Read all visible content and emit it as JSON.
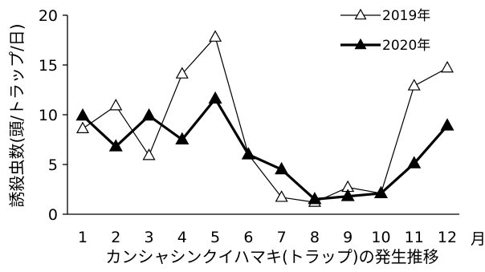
{
  "chart_data": {
    "type": "line",
    "title": "",
    "xlabel": "カンシャシンクイハマキ(トラップ)の発生推移",
    "xunit": "月",
    "ylabel": "誘殺虫数(頭/トラップ/日)",
    "ylim": [
      0,
      20
    ],
    "yticks": [
      "0",
      "5",
      "10",
      "15",
      "20"
    ],
    "grid": false,
    "legend": "top-right",
    "categories": [
      "1",
      "2",
      "3",
      "4",
      "5",
      "6",
      "7",
      "8",
      "9",
      "10",
      "11",
      "12"
    ],
    "series": [
      {
        "name": "2019年",
        "marker": "open-triangle",
        "color": "#000000",
        "line": "thin",
        "values": [
          8.6,
          10.9,
          5.9,
          14.1,
          17.8,
          6.0,
          1.7,
          1.2,
          2.7,
          2.1,
          12.9,
          14.7
        ]
      },
      {
        "name": "2020年",
        "marker": "filled-triangle",
        "color": "#000000",
        "line": "thick",
        "values": [
          9.9,
          6.8,
          9.9,
          7.5,
          11.6,
          6.0,
          4.5,
          1.5,
          1.8,
          2.1,
          5.1,
          8.9
        ]
      }
    ]
  }
}
